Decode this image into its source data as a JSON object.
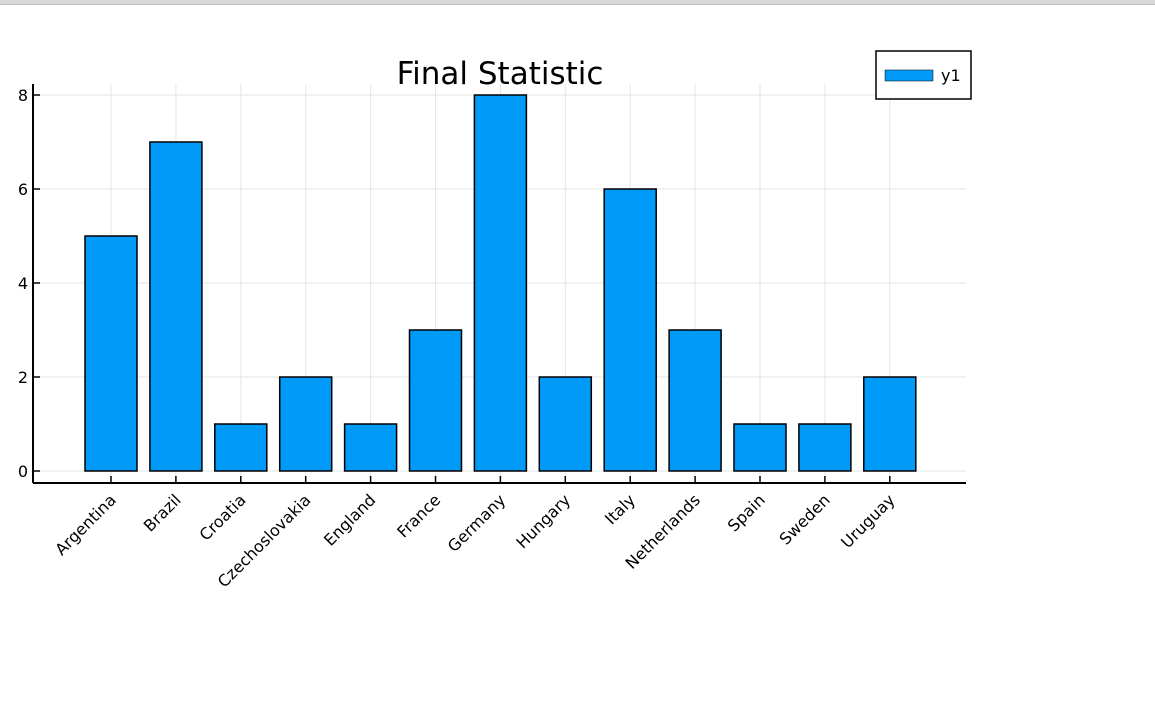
{
  "chart_data": {
    "type": "bar",
    "title": "Final Statistic",
    "xlabel": "",
    "ylabel": "",
    "categories": [
      "Argentina",
      "Brazil",
      "Croatia",
      "Czechoslovakia",
      "England",
      "France",
      "Germany",
      "Hungary",
      "Italy",
      "Netherlands",
      "Spain",
      "Sweden",
      "Uruguay"
    ],
    "series": [
      {
        "name": "y1",
        "values": [
          5,
          7,
          1,
          2,
          1,
          3,
          8,
          2,
          6,
          3,
          1,
          1,
          2
        ]
      }
    ],
    "ylim": [
      0,
      8
    ],
    "yticks": [
      0,
      2,
      4,
      6,
      8
    ],
    "grid": true,
    "legend_position": "top-right",
    "colors": {
      "bar_fill": "#009af9",
      "bar_stroke": "#000000",
      "grid": "#e5e5e5",
      "axis": "#000000"
    }
  }
}
